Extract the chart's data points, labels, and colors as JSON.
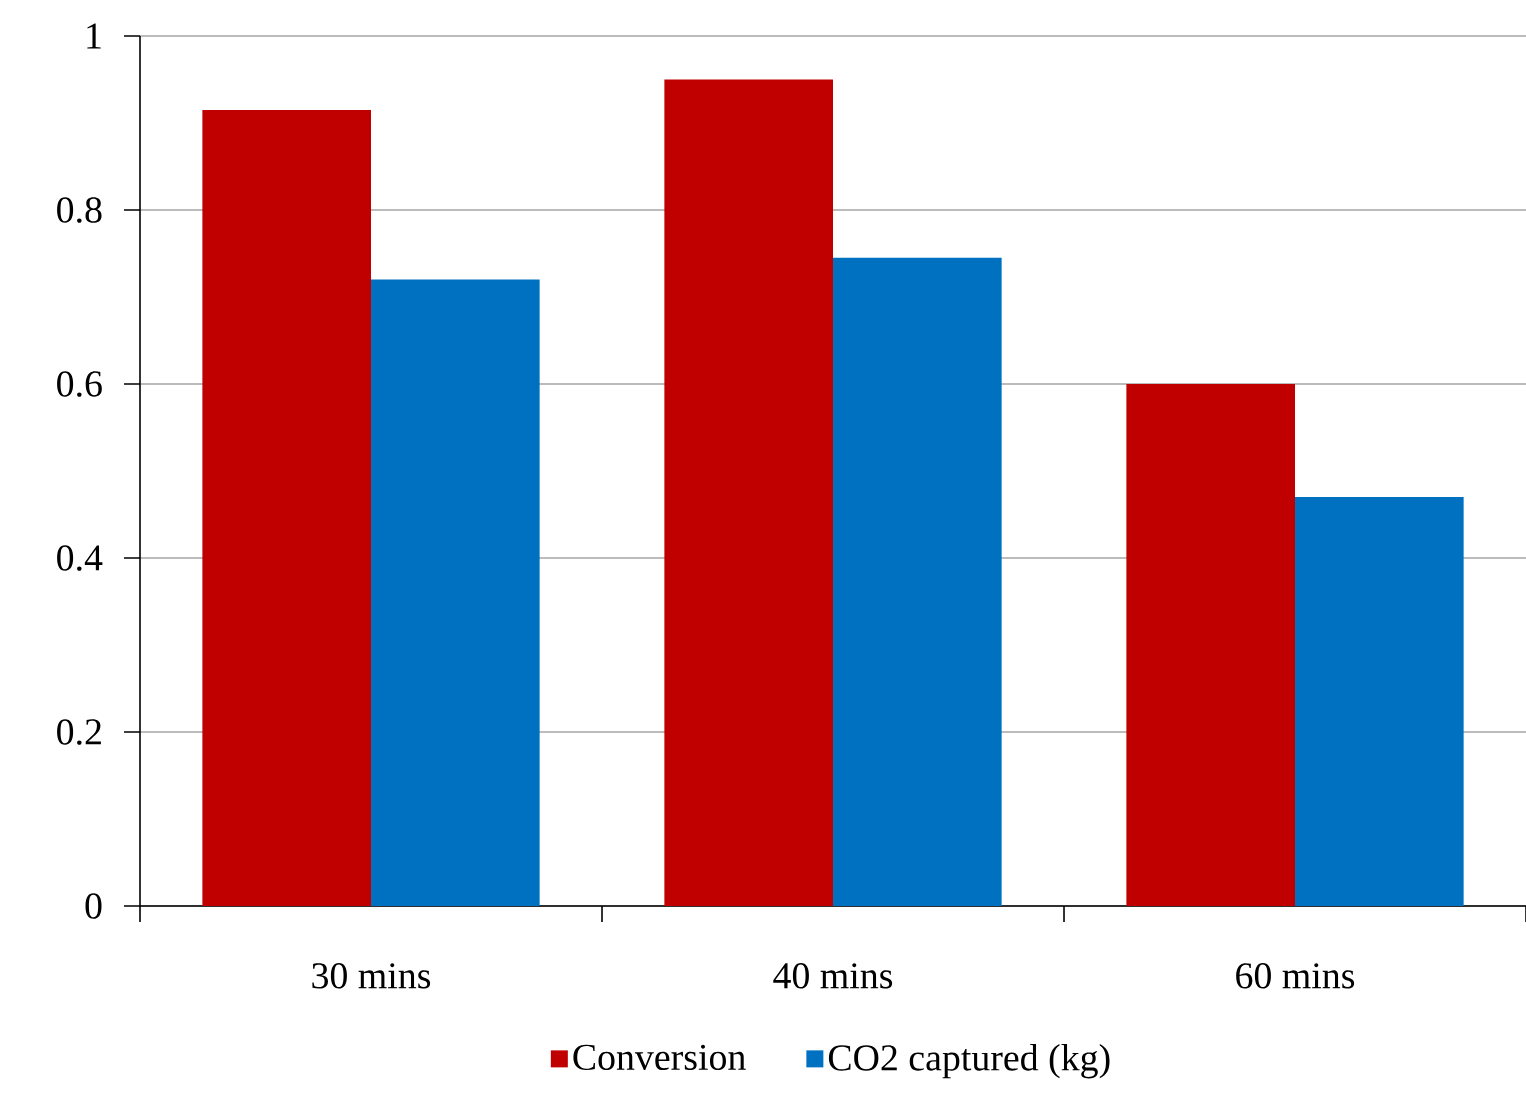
{
  "chart_data": {
    "type": "bar",
    "categories": [
      "30 mins",
      "40 mins",
      "60 mins"
    ],
    "series": [
      {
        "name": "Conversion",
        "color": "#c00000",
        "values": [
          0.915,
          0.95,
          0.6
        ]
      },
      {
        "name": "CO2 captured (kg)",
        "color": "#0070c0",
        "values": [
          0.72,
          0.745,
          0.47
        ]
      }
    ],
    "ylim": [
      0,
      1
    ],
    "yticks": [
      0,
      0.2,
      0.4,
      0.6,
      0.8,
      1
    ],
    "grid": "y",
    "legend": "bottom"
  }
}
